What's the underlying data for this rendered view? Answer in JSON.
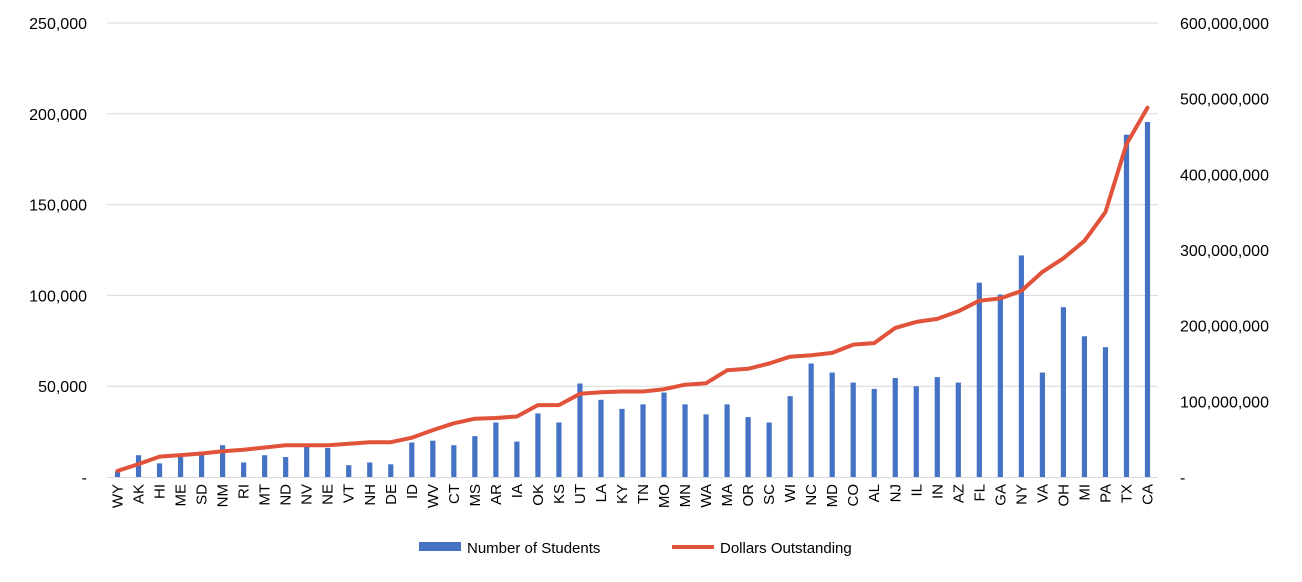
{
  "chart_data": {
    "type": "bar+line",
    "categories": [
      "WY",
      "AK",
      "HI",
      "ME",
      "SD",
      "NM",
      "RI",
      "MT",
      "ND",
      "NV",
      "NE",
      "VT",
      "NH",
      "DE",
      "ID",
      "WV",
      "CT",
      "MS",
      "AR",
      "IA",
      "OK",
      "KS",
      "UT",
      "LA",
      "KY",
      "TN",
      "MO",
      "MN",
      "WA",
      "MA",
      "OR",
      "SC",
      "WI",
      "NC",
      "MD",
      "CO",
      "AL",
      "NJ",
      "IL",
      "IN",
      "AZ",
      "FL",
      "GA",
      "NY",
      "VA",
      "OH",
      "MI",
      "PA",
      "TX",
      "CA"
    ],
    "series": [
      {
        "name": "Number of Students",
        "kind": "bar",
        "axis": "left",
        "color": "#4472C4",
        "values": [
          3000,
          12000,
          7500,
          11000,
          14000,
          17500,
          8000,
          12000,
          11000,
          17000,
          16000,
          6500,
          8000,
          7000,
          19000,
          20000,
          17500,
          22500,
          30000,
          19500,
          35000,
          30000,
          51500,
          42500,
          37500,
          40000,
          46500,
          40000,
          34500,
          40000,
          33000,
          30000,
          44500,
          62500,
          57500,
          52000,
          48500,
          54500,
          50000,
          55000,
          52000,
          107000,
          100500,
          122000,
          57500,
          93500,
          77500,
          71500,
          188500,
          195500
        ]
      },
      {
        "name": "Dollars Outstanding",
        "kind": "line",
        "axis": "right",
        "color": "#E0533A",
        "values": [
          8000000,
          17000000,
          27000000,
          29000000,
          31000000,
          34000000,
          36000000,
          39000000,
          42000000,
          42000000,
          42000000,
          44000000,
          46000000,
          46000000,
          52000000,
          62000000,
          71000000,
          77000000,
          78000000,
          80000000,
          95000000,
          95000000,
          110000000,
          112000000,
          113000000,
          113000000,
          116000000,
          122000000,
          124000000,
          141000000,
          143000000,
          150000000,
          159000000,
          161000000,
          164000000,
          175000000,
          177000000,
          197000000,
          205000000,
          209000000,
          219000000,
          233000000,
          236000000,
          246000000,
          271000000,
          289000000,
          312000000,
          350000000,
          440000000,
          488000000
        ]
      }
    ],
    "y_left": {
      "ylim": [
        0,
        250000
      ],
      "ticks": [
        0,
        50000,
        100000,
        150000,
        200000,
        250000
      ],
      "tick_labels": [
        "-",
        "50,000",
        "100,000",
        "150,000",
        "200,000",
        "250,000"
      ]
    },
    "y_right": {
      "ylim": [
        0,
        600000000
      ],
      "ticks": [
        0,
        100000000,
        200000000,
        300000000,
        400000000,
        500000000,
        600000000
      ],
      "tick_labels": [
        "-",
        "100,000,000",
        "200,000,000",
        "300,000,000",
        "400,000,000",
        "500,000,000",
        "600,000,000"
      ]
    },
    "grid": true,
    "legend": "bottom-center",
    "title": "",
    "xlabel": "",
    "ylabel": ""
  }
}
